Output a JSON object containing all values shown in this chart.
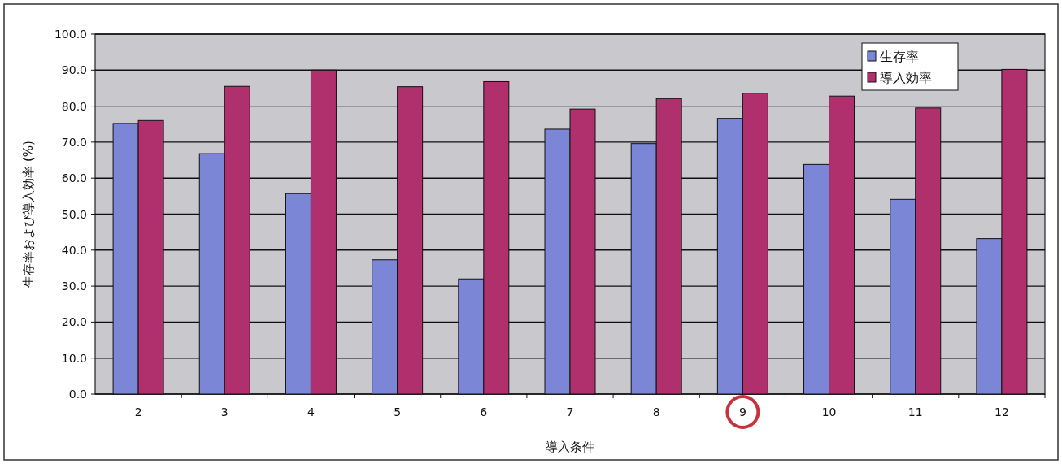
{
  "chart_data": {
    "type": "bar",
    "xlabel": "導入条件",
    "ylabel": "生存率および導入効率 (%)",
    "categories": [
      "2",
      "3",
      "4",
      "5",
      "6",
      "7",
      "8",
      "9",
      "10",
      "11",
      "12"
    ],
    "series": [
      {
        "name": "生存率",
        "color": "#7b86d6",
        "values": [
          75.2,
          66.8,
          55.7,
          37.3,
          32.0,
          73.6,
          69.6,
          76.6,
          63.8,
          54.1,
          43.2
        ]
      },
      {
        "name": "導入効率",
        "color": "#b0306e",
        "values": [
          76.0,
          85.5,
          90.0,
          85.4,
          86.8,
          79.2,
          82.1,
          83.6,
          82.8,
          79.5,
          90.2
        ]
      }
    ],
    "ylim": [
      0,
      100
    ],
    "yticks": [
      {
        "value": 0,
        "label": "0.0"
      },
      {
        "value": 10,
        "label": "10.0"
      },
      {
        "value": 20,
        "label": "20.0"
      },
      {
        "value": 30,
        "label": "30.0"
      },
      {
        "value": 40,
        "label": "40.0"
      },
      {
        "value": 50,
        "label": "50.0"
      },
      {
        "value": 60,
        "label": "60.0"
      },
      {
        "value": 70,
        "label": "70.0"
      },
      {
        "value": 80,
        "label": "80.0"
      },
      {
        "value": 90,
        "label": "90.0"
      },
      {
        "value": 100,
        "label": "100.0"
      }
    ],
    "grid": "y",
    "legend": "top right"
  }
}
